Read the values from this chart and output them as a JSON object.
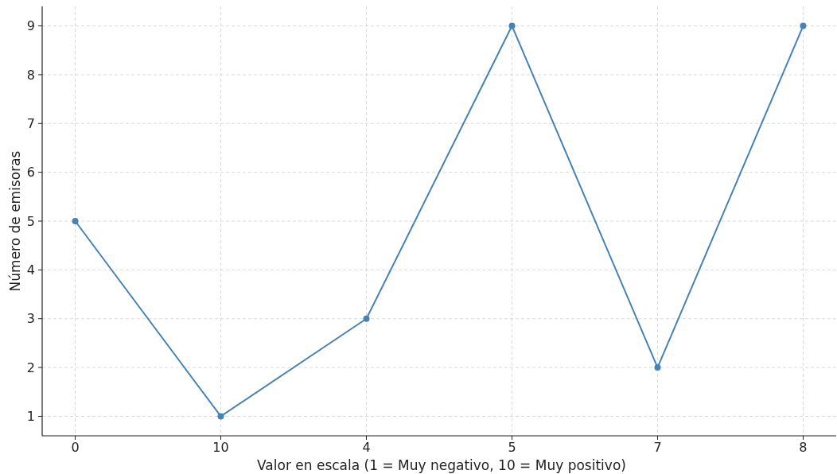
{
  "chart_data": {
    "type": "line",
    "xlabel": "Valor en escala (1 = Muy negativo, 10 = Muy positivo)",
    "ylabel": "Número de emisoras",
    "categories": [
      "0",
      "10",
      "4",
      "5",
      "7",
      "8"
    ],
    "series": [
      {
        "color": "#4682b4",
        "values": [
          5,
          1,
          3,
          9,
          2,
          9
        ]
      }
    ],
    "ylim": [
      0.6,
      9.4
    ],
    "yticks": [
      1,
      2,
      3,
      4,
      5,
      6,
      7,
      8,
      9
    ],
    "grid": true,
    "marker": "circle",
    "line_style": "solid"
  }
}
